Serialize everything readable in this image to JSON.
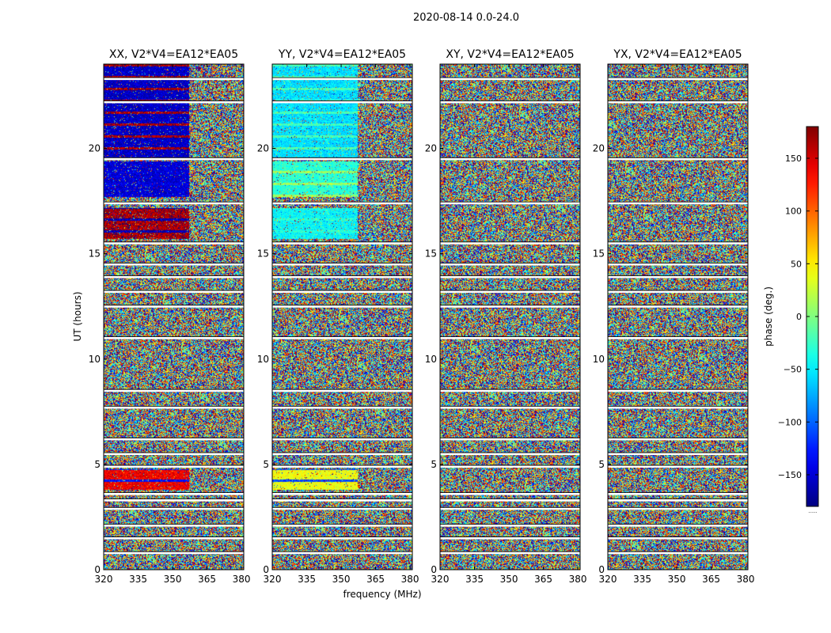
{
  "figure": {
    "suptitle": "2020-08-14 0.0-24.0"
  },
  "colors": {
    "background": "#ffffff",
    "axis": "#000000",
    "gap": "#ffffff",
    "flagline": "#000000"
  },
  "chart_data": {
    "type": "heatmap",
    "colormap": "jet",
    "xlabel": "frequency (MHz)",
    "ylabel": "UT (hours)",
    "xlim": [
      320,
      381
    ],
    "ylim": [
      0,
      24
    ],
    "xticks": [
      "320",
      "335",
      "350",
      "365",
      "380"
    ],
    "yticks": [
      "0",
      "5",
      "10",
      "15",
      "20"
    ],
    "colorbar": {
      "label": "phase (deg.)",
      "range": [
        -180,
        180
      ],
      "ticks": [
        "−150",
        "−100",
        "−50",
        "0",
        "50",
        "100",
        "150"
      ],
      "footnote": "......"
    },
    "panels": [
      {
        "title": "XX, V2*V4=EA12*EA05",
        "coherent": [
          {
            "t0": 19.6,
            "t1": 24.0,
            "f0": 320,
            "f1": 357,
            "phase": [
              -155,
              165
            ]
          },
          {
            "t0": 17.7,
            "t1": 19.4,
            "f0": 320,
            "f1": 357,
            "phase": [
              -150,
              -145
            ]
          },
          {
            "t0": 15.7,
            "t1": 17.2,
            "f0": 320,
            "f1": 357,
            "phase": [
              165,
              -160
            ]
          },
          {
            "t0": 3.8,
            "t1": 4.8,
            "f0": 320,
            "f1": 357,
            "phase": [
              140,
              -130
            ]
          }
        ]
      },
      {
        "title": "YY, V2*V4=EA12*EA05",
        "coherent": [
          {
            "t0": 19.6,
            "t1": 24.0,
            "f0": 320,
            "f1": 357,
            "phase": [
              -55,
              -20
            ]
          },
          {
            "t0": 17.7,
            "t1": 19.4,
            "f0": 320,
            "f1": 357,
            "phase": [
              -30,
              10
            ]
          },
          {
            "t0": 15.7,
            "t1": 17.2,
            "f0": 320,
            "f1": 357,
            "phase": [
              -45,
              -30
            ]
          },
          {
            "t0": 3.8,
            "t1": 4.8,
            "f0": 320,
            "f1": 357,
            "phase": [
              40,
              -110
            ]
          }
        ]
      },
      {
        "title": "XY, V2*V4=EA12*EA05",
        "coherent": []
      },
      {
        "title": "YX, V2*V4=EA12*EA05",
        "coherent": []
      }
    ],
    "gaps_hours": [
      0.8,
      1.5,
      2.1,
      2.9,
      3.3,
      3.6,
      4.9,
      5.5,
      6.2,
      7.7,
      8.5,
      11.0,
      12.5,
      13.2,
      13.9,
      14.5,
      15.5,
      17.4,
      19.5,
      22.2,
      23.3
    ]
  }
}
